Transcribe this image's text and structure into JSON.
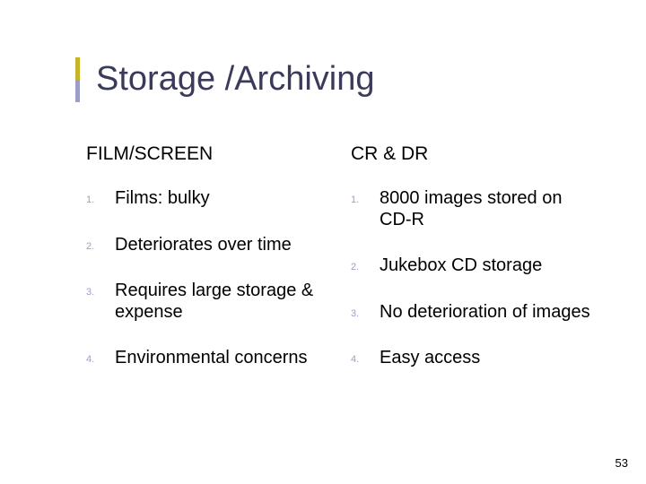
{
  "title": "Storage /Archiving",
  "accent_colors": {
    "top": "#c6b429",
    "bottom": "#9d9dc9"
  },
  "text_color": "#000000",
  "title_color": "#3a3a5a",
  "number_color": "#9d9dc9",
  "background_color": "#ffffff",
  "title_fontsize": 38,
  "heading_fontsize": 21,
  "item_fontsize": 20,
  "number_fontsize": 11,
  "columns": [
    {
      "heading": "FILM/SCREEN",
      "items": [
        "Films: bulky",
        "Deteriorates over time",
        "Requires large storage & expense",
        "Environmental concerns"
      ]
    },
    {
      "heading": "CR  &  DR",
      "items": [
        "8000 images stored on CD-R",
        "Jukebox CD storage",
        "No deterioration of images",
        "Easy access"
      ]
    }
  ],
  "page_number": "53"
}
